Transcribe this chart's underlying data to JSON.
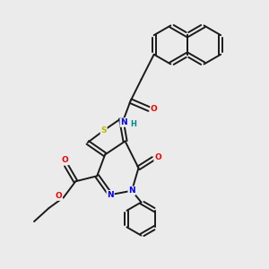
{
  "bg_color": "#ebebeb",
  "bond_color": "#1a1a1a",
  "S_color": "#b8b800",
  "N_color": "#0000ee",
  "O_color": "#ee0000",
  "H_color": "#008888",
  "line_width": 1.4,
  "figsize": [
    3.0,
    3.0
  ],
  "dpi": 100,
  "xlim": [
    0,
    10
  ],
  "ylim": [
    0,
    10
  ]
}
